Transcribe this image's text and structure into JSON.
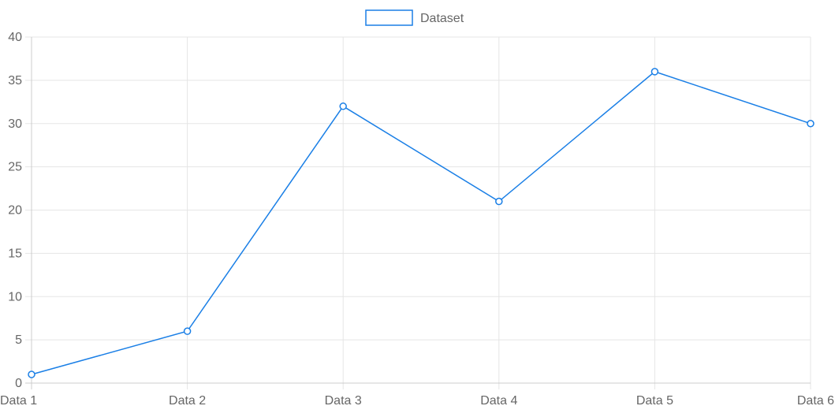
{
  "chart_data": {
    "type": "line",
    "title": "",
    "xlabel": "",
    "ylabel": "",
    "categories": [
      "Data 1",
      "Data 2",
      "Data 3",
      "Data 4",
      "Data 5",
      "Data 6"
    ],
    "series": [
      {
        "name": "Dataset",
        "values": [
          1,
          6,
          32,
          21,
          36,
          30
        ],
        "color": "#1a7fe6"
      }
    ],
    "ylim": [
      0,
      40
    ],
    "y_ticks": [
      0,
      5,
      10,
      15,
      20,
      25,
      30,
      35,
      40
    ],
    "grid": true,
    "legend_position": "top-center"
  },
  "colors": {
    "grid": "#e5e5e5",
    "axis": "#cccccc",
    "text": "#666666"
  }
}
